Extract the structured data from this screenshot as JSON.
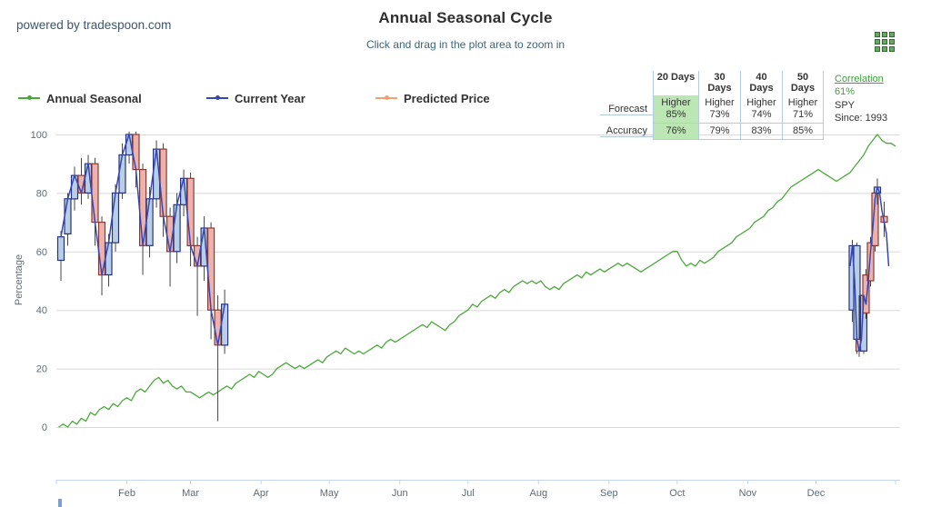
{
  "header": {
    "powered_by": "powered by tradespoon.com",
    "title": "Annual Seasonal Cycle",
    "subtitle": "Click and drag in the plot area to zoom in"
  },
  "legend": [
    {
      "label": "Annual Seasonal",
      "color": "#4ca83c"
    },
    {
      "label": "Current Year",
      "color": "#3546b5"
    },
    {
      "label": "Predicted Price",
      "color": "#f59e6e"
    }
  ],
  "table": {
    "columns": [
      "20 Days",
      "30 Days",
      "40 Days",
      "50 Days"
    ],
    "row_labels": [
      "Forecast",
      "Accuracy"
    ],
    "forecast": [
      {
        "dir": "Higher",
        "val": "85%"
      },
      {
        "dir": "Higher",
        "val": "73%"
      },
      {
        "dir": "Higher",
        "val": "74%"
      },
      {
        "dir": "Higher",
        "val": "71%"
      }
    ],
    "accuracy": [
      "76%",
      "79%",
      "83%",
      "85%"
    ],
    "correlation_label": "Correlation",
    "correlation_value": "61%",
    "symbol": "SPY",
    "since": "Since: 1993",
    "highlight_color": "#bde6b5",
    "border_color": "#b3cbe6"
  },
  "chart_data": {
    "type": "line+candlestick",
    "title": "Annual Seasonal Cycle",
    "ylabel": "Percentage",
    "ylim": [
      0,
      100
    ],
    "yticks": [
      0,
      20,
      40,
      60,
      80,
      100
    ],
    "grid": true,
    "xticklabels": [
      "Feb",
      "Mar",
      "Apr",
      "May",
      "Jun",
      "Jul",
      "Aug",
      "Sep",
      "Oct",
      "Nov",
      "Dec"
    ],
    "xtick_days": [
      31,
      59,
      90,
      120,
      151,
      181,
      212,
      243,
      273,
      304,
      334
    ],
    "x_domain_days": [
      0,
      371
    ],
    "axis_color": "#c3d6ea",
    "gridline_color": "#d9d9d9",
    "series": [
      {
        "name": "Annual Seasonal",
        "type": "line",
        "color": "#4ca83c",
        "points": [
          [
            1,
            0
          ],
          [
            3,
            1
          ],
          [
            5,
            0
          ],
          [
            7,
            2
          ],
          [
            9,
            1
          ],
          [
            11,
            3
          ],
          [
            13,
            2
          ],
          [
            15,
            5
          ],
          [
            17,
            4
          ],
          [
            19,
            6
          ],
          [
            21,
            7
          ],
          [
            23,
            6
          ],
          [
            25,
            8
          ],
          [
            27,
            7
          ],
          [
            29,
            9
          ],
          [
            31,
            10
          ],
          [
            33,
            9
          ],
          [
            35,
            12
          ],
          [
            37,
            13
          ],
          [
            39,
            12
          ],
          [
            41,
            14
          ],
          [
            43,
            16
          ],
          [
            45,
            17
          ],
          [
            47,
            15
          ],
          [
            49,
            16
          ],
          [
            51,
            14
          ],
          [
            53,
            13
          ],
          [
            55,
            14
          ],
          [
            57,
            12
          ],
          [
            59,
            12
          ],
          [
            61,
            11
          ],
          [
            63,
            10
          ],
          [
            65,
            11
          ],
          [
            67,
            12
          ],
          [
            69,
            11
          ],
          [
            71,
            12
          ],
          [
            73,
            13
          ],
          [
            75,
            14
          ],
          [
            77,
            13
          ],
          [
            79,
            15
          ],
          [
            81,
            16
          ],
          [
            83,
            17
          ],
          [
            85,
            18
          ],
          [
            87,
            17
          ],
          [
            89,
            19
          ],
          [
            91,
            18
          ],
          [
            93,
            17
          ],
          [
            95,
            18
          ],
          [
            97,
            20
          ],
          [
            99,
            21
          ],
          [
            101,
            22
          ],
          [
            103,
            21
          ],
          [
            105,
            20
          ],
          [
            107,
            21
          ],
          [
            109,
            20
          ],
          [
            111,
            21
          ],
          [
            113,
            22
          ],
          [
            115,
            23
          ],
          [
            117,
            22
          ],
          [
            119,
            24
          ],
          [
            121,
            25
          ],
          [
            123,
            26
          ],
          [
            125,
            25
          ],
          [
            127,
            27
          ],
          [
            129,
            26
          ],
          [
            131,
            25
          ],
          [
            133,
            26
          ],
          [
            135,
            25
          ],
          [
            137,
            26
          ],
          [
            139,
            27
          ],
          [
            141,
            28
          ],
          [
            143,
            27
          ],
          [
            145,
            29
          ],
          [
            147,
            30
          ],
          [
            149,
            29
          ],
          [
            151,
            30
          ],
          [
            153,
            31
          ],
          [
            155,
            32
          ],
          [
            157,
            33
          ],
          [
            159,
            34
          ],
          [
            161,
            35
          ],
          [
            163,
            34
          ],
          [
            165,
            36
          ],
          [
            167,
            35
          ],
          [
            169,
            34
          ],
          [
            171,
            33
          ],
          [
            173,
            35
          ],
          [
            175,
            36
          ],
          [
            177,
            38
          ],
          [
            179,
            39
          ],
          [
            181,
            40
          ],
          [
            183,
            42
          ],
          [
            185,
            41
          ],
          [
            187,
            43
          ],
          [
            189,
            44
          ],
          [
            191,
            45
          ],
          [
            193,
            44
          ],
          [
            195,
            46
          ],
          [
            197,
            47
          ],
          [
            199,
            46
          ],
          [
            201,
            48
          ],
          [
            203,
            49
          ],
          [
            205,
            50
          ],
          [
            207,
            49
          ],
          [
            209,
            50
          ],
          [
            211,
            49
          ],
          [
            213,
            50
          ],
          [
            215,
            48
          ],
          [
            217,
            47
          ],
          [
            219,
            48
          ],
          [
            221,
            47
          ],
          [
            223,
            49
          ],
          [
            225,
            50
          ],
          [
            227,
            51
          ],
          [
            229,
            52
          ],
          [
            231,
            51
          ],
          [
            233,
            53
          ],
          [
            235,
            52
          ],
          [
            237,
            53
          ],
          [
            239,
            54
          ],
          [
            241,
            53
          ],
          [
            243,
            54
          ],
          [
            245,
            55
          ],
          [
            247,
            56
          ],
          [
            249,
            55
          ],
          [
            251,
            56
          ],
          [
            253,
            55
          ],
          [
            255,
            54
          ],
          [
            257,
            53
          ],
          [
            259,
            54
          ],
          [
            261,
            55
          ],
          [
            263,
            56
          ],
          [
            265,
            57
          ],
          [
            267,
            58
          ],
          [
            269,
            59
          ],
          [
            271,
            60
          ],
          [
            273,
            60
          ],
          [
            275,
            57
          ],
          [
            277,
            55
          ],
          [
            279,
            56
          ],
          [
            281,
            55
          ],
          [
            283,
            57
          ],
          [
            285,
            56
          ],
          [
            287,
            57
          ],
          [
            289,
            58
          ],
          [
            291,
            60
          ],
          [
            293,
            61
          ],
          [
            295,
            62
          ],
          [
            297,
            63
          ],
          [
            299,
            65
          ],
          [
            301,
            66
          ],
          [
            303,
            67
          ],
          [
            305,
            68
          ],
          [
            307,
            70
          ],
          [
            309,
            71
          ],
          [
            311,
            72
          ],
          [
            313,
            74
          ],
          [
            315,
            75
          ],
          [
            317,
            77
          ],
          [
            319,
            78
          ],
          [
            321,
            80
          ],
          [
            323,
            82
          ],
          [
            325,
            83
          ],
          [
            327,
            84
          ],
          [
            329,
            85
          ],
          [
            331,
            86
          ],
          [
            333,
            87
          ],
          [
            335,
            88
          ],
          [
            337,
            87
          ],
          [
            339,
            86
          ],
          [
            341,
            85
          ],
          [
            343,
            84
          ],
          [
            345,
            85
          ],
          [
            347,
            86
          ],
          [
            349,
            87
          ],
          [
            351,
            89
          ],
          [
            353,
            91
          ],
          [
            355,
            93
          ],
          [
            357,
            96
          ],
          [
            359,
            98
          ],
          [
            361,
            100
          ],
          [
            363,
            98
          ],
          [
            365,
            97
          ],
          [
            367,
            97
          ],
          [
            369,
            96
          ]
        ]
      },
      {
        "name": "Current Year",
        "type": "line",
        "color": "#3546b5",
        "segments": [
          [
            [
              2,
              65
            ],
            [
              5,
              78
            ],
            [
              8,
              86
            ],
            [
              11,
              80
            ],
            [
              14,
              90
            ],
            [
              17,
              70
            ],
            [
              20,
              52
            ],
            [
              23,
              63
            ],
            [
              26,
              80
            ],
            [
              29,
              93
            ],
            [
              32,
              100
            ],
            [
              35,
              88
            ],
            [
              38,
              62
            ],
            [
              41,
              78
            ],
            [
              44,
              95
            ],
            [
              47,
              72
            ],
            [
              50,
              60
            ],
            [
              53,
              76
            ],
            [
              56,
              85
            ],
            [
              59,
              62
            ],
            [
              62,
              55
            ],
            [
              65,
              68
            ],
            [
              68,
              40
            ],
            [
              71,
              28
            ],
            [
              74,
              42
            ]
          ],
          [
            [
              349,
              55
            ],
            [
              350,
              62
            ],
            [
              351,
              50
            ],
            [
              352,
              30
            ],
            [
              353,
              26
            ],
            [
              354,
              30
            ],
            [
              355,
              45
            ],
            [
              356,
              42
            ],
            [
              357,
              50
            ],
            [
              358,
              60
            ],
            [
              359,
              68
            ],
            [
              360,
              78
            ],
            [
              361,
              82
            ],
            [
              362,
              80
            ],
            [
              363,
              74
            ],
            [
              364,
              70
            ],
            [
              365,
              66
            ],
            [
              366,
              55
            ]
          ]
        ]
      },
      {
        "name": "Predicted Price",
        "type": "candlestick",
        "up_color": "#b9cfe7",
        "up_border": "#26337f",
        "down_color": "#eeb2ac",
        "down_border": "#8b3a30",
        "wick_color": "#444444",
        "candles": [
          [
            2,
            57,
            65,
            50,
            67,
            "b"
          ],
          [
            5,
            66,
            78,
            62,
            80,
            "b"
          ],
          [
            8,
            78,
            86,
            74,
            89,
            "b"
          ],
          [
            11,
            86,
            80,
            76,
            92,
            "p"
          ],
          [
            14,
            80,
            90,
            78,
            93,
            "b"
          ],
          [
            17,
            90,
            70,
            62,
            92,
            "p"
          ],
          [
            20,
            70,
            52,
            45,
            72,
            "p"
          ],
          [
            23,
            52,
            63,
            48,
            66,
            "b"
          ],
          [
            26,
            63,
            80,
            60,
            83,
            "b"
          ],
          [
            29,
            80,
            93,
            78,
            97,
            "b"
          ],
          [
            32,
            93,
            100,
            90,
            101,
            "b"
          ],
          [
            35,
            100,
            88,
            82,
            101,
            "p"
          ],
          [
            38,
            88,
            62,
            52,
            90,
            "p"
          ],
          [
            41,
            62,
            78,
            58,
            82,
            "b"
          ],
          [
            44,
            78,
            95,
            75,
            98,
            "b"
          ],
          [
            47,
            95,
            72,
            65,
            97,
            "p"
          ],
          [
            50,
            72,
            60,
            48,
            75,
            "p"
          ],
          [
            53,
            60,
            76,
            56,
            80,
            "b"
          ],
          [
            56,
            76,
            85,
            72,
            88,
            "b"
          ],
          [
            59,
            85,
            62,
            55,
            87,
            "p"
          ],
          [
            62,
            62,
            55,
            38,
            65,
            "p"
          ],
          [
            65,
            55,
            68,
            50,
            72,
            "b"
          ],
          [
            68,
            68,
            40,
            30,
            70,
            "p"
          ],
          [
            71,
            40,
            28,
            2,
            45,
            "p"
          ],
          [
            74,
            28,
            42,
            25,
            47,
            "b"
          ],
          [
            350,
            40,
            62,
            36,
            64,
            "b"
          ],
          [
            352,
            62,
            30,
            25,
            63,
            "b"
          ],
          [
            353,
            30,
            26,
            24,
            45,
            "p"
          ],
          [
            355,
            26,
            45,
            25,
            47,
            "b"
          ],
          [
            356,
            52,
            39,
            37,
            54,
            "p"
          ],
          [
            358,
            50,
            63,
            48,
            65,
            "p"
          ],
          [
            360,
            62,
            80,
            60,
            82,
            "p"
          ],
          [
            361,
            80,
            82,
            76,
            85,
            "b"
          ],
          [
            364,
            72,
            70,
            65,
            77,
            "p"
          ]
        ]
      }
    ]
  }
}
